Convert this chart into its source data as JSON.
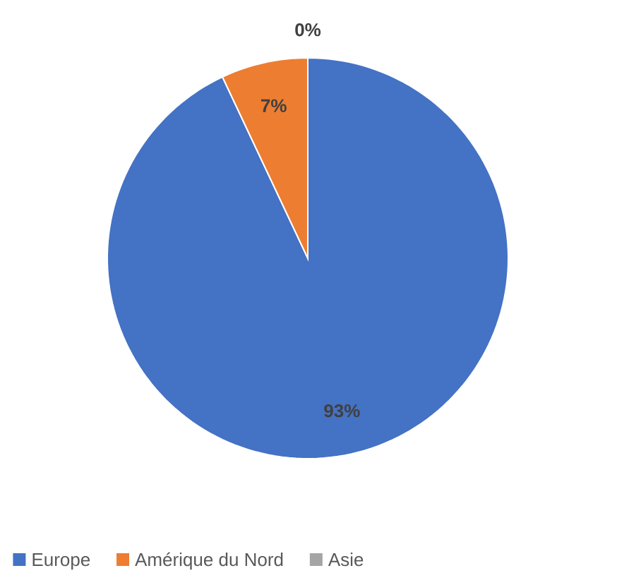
{
  "chart_data": {
    "type": "pie",
    "categories": [
      "Europe",
      "Amérique du Nord",
      "Asie"
    ],
    "values": [
      93,
      7,
      0
    ],
    "colors": [
      "#4472c4",
      "#ed7d31",
      "#a5a5a5"
    ],
    "value_labels": [
      "93%",
      "7%",
      "0%"
    ],
    "legend": "bottom"
  }
}
